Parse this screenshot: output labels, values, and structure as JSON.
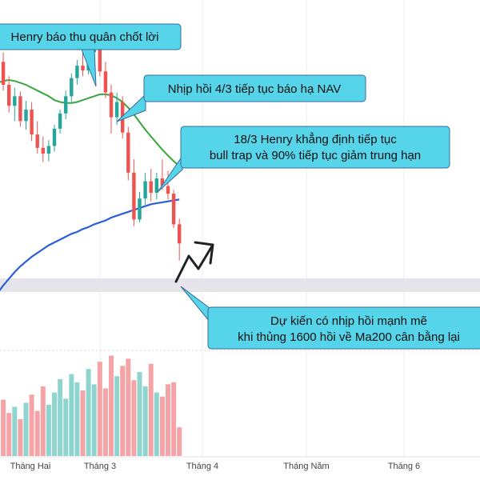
{
  "colors": {
    "up": "#26a69a",
    "down": "#ef5350",
    "up_volume": "#8fd5cf",
    "down_volume": "#f4a3a6",
    "ma20": "#3aa63f",
    "ma200": "#2c5ed8",
    "callout_fill": "#56d5ea",
    "callout_stroke": "#3a6a9c",
    "support_band": "#e4e4ea",
    "arrow": "#222222",
    "grid": "#eeeeee"
  },
  "annotations": [
    {
      "id": "a1",
      "lines": [
        "Henry báo thu quân chốt lời"
      ]
    },
    {
      "id": "a2",
      "lines": [
        "Nhịp hồi 4/3 tiếp tục báo hạ NAV"
      ]
    },
    {
      "id": "a3",
      "lines": [
        "18/3 Henry khẳng định tiếp tục",
        "bull trap và 90% tiếp tục giảm trung hạn"
      ]
    },
    {
      "id": "a4",
      "lines": [
        "Dự kiến có nhịp hồi mạnh mẽ",
        "khi thủng 1600 hồi về Ma200 cân bằng lại"
      ]
    }
  ],
  "chart_data": {
    "type": "candlestick",
    "title": "",
    "xlabel": "",
    "ylabel": "",
    "x_ticks": [
      "Tháng Hai",
      "Tháng 3",
      "Tháng 4",
      "Tháng Năm",
      "Tháng 6"
    ],
    "support_level": 1600,
    "ylim": [
      1440,
      1790
    ],
    "grid": true,
    "candles": [
      {
        "o": 1768,
        "h": 1777,
        "l": 1735,
        "c": 1742
      },
      {
        "o": 1742,
        "h": 1752,
        "l": 1712,
        "c": 1718
      },
      {
        "o": 1718,
        "h": 1727,
        "l": 1689,
        "c": 1696
      },
      {
        "o": 1696,
        "h": 1715,
        "l": 1680,
        "c": 1706
      },
      {
        "o": 1706,
        "h": 1711,
        "l": 1674,
        "c": 1680
      },
      {
        "o": 1680,
        "h": 1701,
        "l": 1671,
        "c": 1692
      },
      {
        "o": 1692,
        "h": 1700,
        "l": 1659,
        "c": 1666
      },
      {
        "o": 1666,
        "h": 1680,
        "l": 1646,
        "c": 1652
      },
      {
        "o": 1652,
        "h": 1664,
        "l": 1637,
        "c": 1646
      },
      {
        "o": 1646,
        "h": 1660,
        "l": 1638,
        "c": 1654
      },
      {
        "o": 1654,
        "h": 1676,
        "l": 1648,
        "c": 1672
      },
      {
        "o": 1672,
        "h": 1692,
        "l": 1667,
        "c": 1688
      },
      {
        "o": 1688,
        "h": 1712,
        "l": 1682,
        "c": 1706
      },
      {
        "o": 1706,
        "h": 1730,
        "l": 1700,
        "c": 1725
      },
      {
        "o": 1725,
        "h": 1744,
        "l": 1718,
        "c": 1738
      },
      {
        "o": 1738,
        "h": 1756,
        "l": 1727,
        "c": 1733
      },
      {
        "o": 1733,
        "h": 1760,
        "l": 1729,
        "c": 1752
      },
      {
        "o": 1752,
        "h": 1768,
        "l": 1744,
        "c": 1759
      },
      {
        "o": 1759,
        "h": 1765,
        "l": 1727,
        "c": 1732
      },
      {
        "o": 1732,
        "h": 1742,
        "l": 1704,
        "c": 1710
      },
      {
        "o": 1710,
        "h": 1718,
        "l": 1667,
        "c": 1684
      },
      {
        "o": 1684,
        "h": 1710,
        "l": 1676,
        "c": 1700
      },
      {
        "o": 1700,
        "h": 1706,
        "l": 1662,
        "c": 1668
      },
      {
        "o": 1668,
        "h": 1674,
        "l": 1618,
        "c": 1626
      },
      {
        "o": 1626,
        "h": 1640,
        "l": 1570,
        "c": 1577
      },
      {
        "o": 1577,
        "h": 1606,
        "l": 1574,
        "c": 1599
      },
      {
        "o": 1599,
        "h": 1626,
        "l": 1590,
        "c": 1617
      },
      {
        "o": 1617,
        "h": 1630,
        "l": 1596,
        "c": 1605
      },
      {
        "o": 1605,
        "h": 1626,
        "l": 1598,
        "c": 1620
      },
      {
        "o": 1620,
        "h": 1640,
        "l": 1608,
        "c": 1612
      },
      {
        "o": 1612,
        "h": 1628,
        "l": 1598,
        "c": 1604
      },
      {
        "o": 1604,
        "h": 1608,
        "l": 1568,
        "c": 1572
      },
      {
        "o": 1572,
        "h": 1578,
        "l": 1534,
        "c": 1552
      }
    ],
    "volume": [
      0.4,
      0.55,
      0.42,
      0.48,
      0.36,
      0.52,
      0.6,
      0.44,
      0.68,
      0.5,
      0.62,
      0.75,
      0.56,
      0.8,
      0.72,
      0.64,
      0.85,
      0.7,
      0.92,
      0.66,
      0.98,
      0.78,
      0.88,
      0.95,
      0.74,
      0.82,
      0.68,
      0.9,
      0.62,
      0.58,
      0.7,
      0.72,
      0.28
    ],
    "series": [
      {
        "name": "",
        "label_for": "ma20",
        "values": [
          1720,
          1722,
          1723,
          1722,
          1720,
          1718,
          1715,
          1712,
          1709,
          1706,
          1702,
          1700,
          1699,
          1699,
          1700,
          1702,
          1704,
          1706,
          1708,
          1708,
          1707,
          1704,
          1700,
          1694,
          1687,
          1679,
          1671,
          1664,
          1657,
          1650,
          1644,
          1638,
          1633
        ]
      },
      {
        "name": "",
        "label_for": "ma200",
        "values": [
          1500,
          1508,
          1515,
          1522,
          1528,
          1533,
          1538,
          1542,
          1546,
          1550,
          1553,
          1556,
          1559,
          1562,
          1564,
          1567,
          1569,
          1572,
          1574,
          1576,
          1579,
          1581,
          1583,
          1585,
          1587,
          1589,
          1591,
          1593,
          1594,
          1595,
          1596,
          1597,
          1598
        ]
      }
    ]
  }
}
